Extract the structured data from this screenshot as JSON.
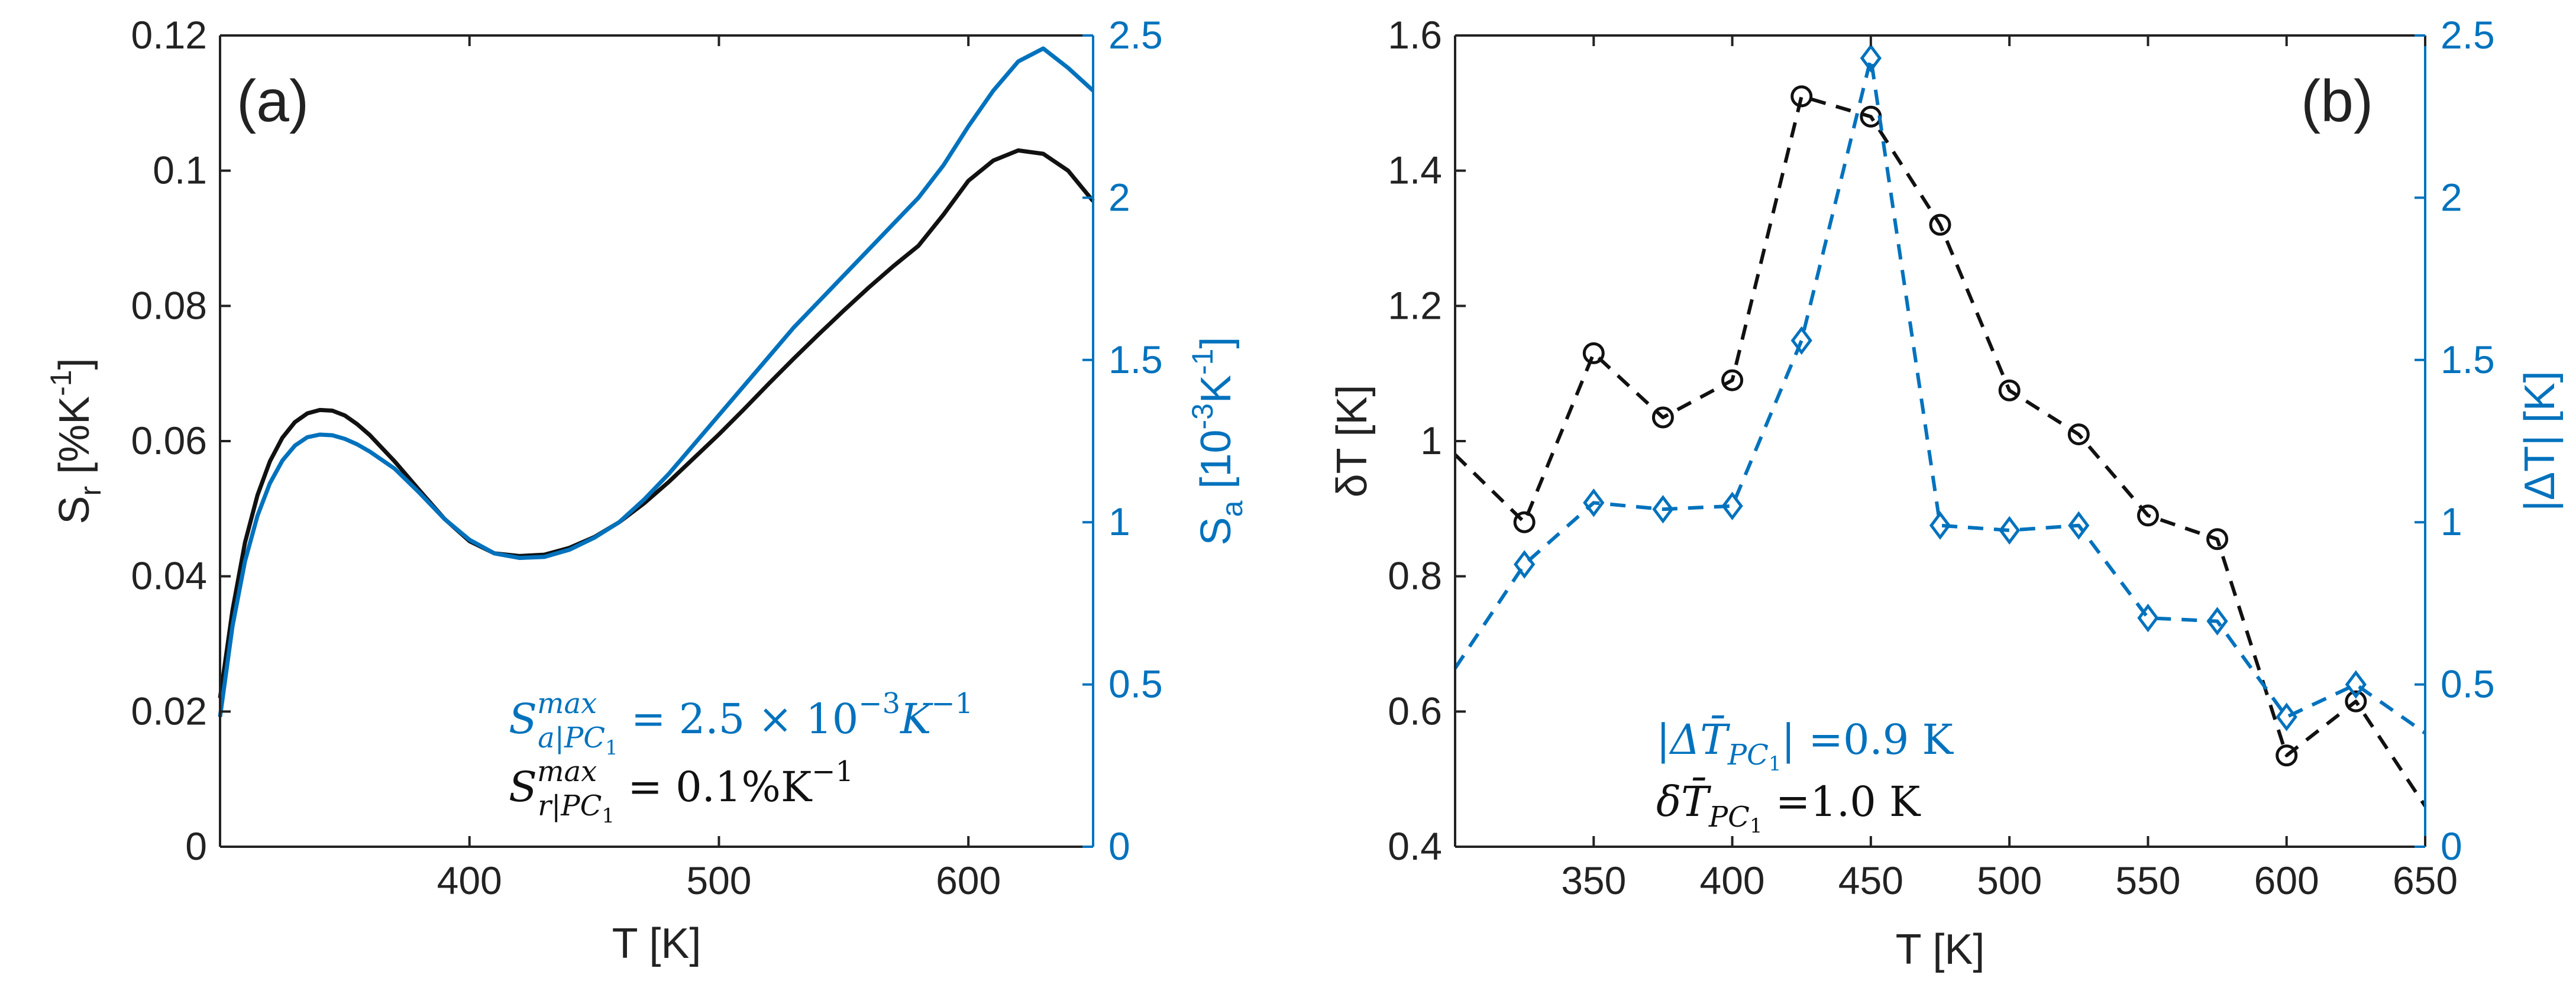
{
  "colors": {
    "black": "#111111",
    "blue": "#0072BD"
  },
  "chart_data": [
    {
      "type": "line",
      "panel_label": "(a)",
      "xlabel": "T [K]",
      "ylabel_left": {
        "base": "S",
        "sub": "r",
        "open": " [%K",
        "sup": "-1",
        "close": "]"
      },
      "ylabel_right": {
        "base": "S",
        "sub": "a",
        "open": " [10",
        "sup": "-3",
        "mid": "K",
        "sup2": "-1",
        "close": "]"
      },
      "xlim": [
        300,
        650
      ],
      "ylim_left": [
        0,
        0.12
      ],
      "ylim_right": [
        0,
        2.5
      ],
      "xticks": [
        400,
        500,
        600
      ],
      "xtick_labels": [
        "400",
        "500",
        "600"
      ],
      "yticks_left": [
        0,
        0.02,
        0.04,
        0.06,
        0.08,
        0.1,
        0.12
      ],
      "ytick_labels_left": [
        "0",
        "0.02",
        "0.04",
        "0.06",
        "0.08",
        "0.1",
        "0.12"
      ],
      "yticks_right": [
        0,
        0.5,
        1,
        1.5,
        2,
        2.5
      ],
      "ytick_labels_right": [
        "0",
        "0.5",
        "1",
        "1.5",
        "2",
        "2.5"
      ],
      "series": [
        {
          "name": "S_r",
          "axis": "left",
          "color": "#111111",
          "x": [
            300,
            305,
            310,
            315,
            320,
            325,
            330,
            335,
            340,
            345,
            350,
            355,
            360,
            370,
            380,
            390,
            400,
            410,
            420,
            430,
            440,
            450,
            460,
            470,
            480,
            490,
            500,
            510,
            520,
            530,
            540,
            550,
            560,
            570,
            580,
            590,
            600,
            610,
            620,
            630,
            640,
            650
          ],
          "y": [
            0.022,
            0.035,
            0.045,
            0.052,
            0.057,
            0.0605,
            0.0628,
            0.0641,
            0.0646,
            0.0645,
            0.0638,
            0.0625,
            0.0609,
            0.057,
            0.0527,
            0.0485,
            0.0452,
            0.0434,
            0.043,
            0.0432,
            0.0442,
            0.0458,
            0.048,
            0.0508,
            0.054,
            0.0575,
            0.061,
            0.0647,
            0.0685,
            0.0722,
            0.0758,
            0.0793,
            0.0827,
            0.0859,
            0.0889,
            0.0935,
            0.0985,
            0.1015,
            0.103,
            0.1025,
            0.1,
            0.0955
          ]
        },
        {
          "name": "S_a",
          "axis": "right",
          "color": "#0072BD",
          "x": [
            300,
            305,
            310,
            315,
            320,
            325,
            330,
            335,
            340,
            345,
            350,
            355,
            360,
            370,
            380,
            390,
            400,
            410,
            420,
            430,
            440,
            450,
            460,
            470,
            480,
            490,
            500,
            510,
            520,
            530,
            540,
            550,
            560,
            570,
            580,
            590,
            600,
            610,
            620,
            630,
            640,
            650
          ],
          "y": [
            0.4,
            0.68,
            0.88,
            1.02,
            1.12,
            1.19,
            1.236,
            1.262,
            1.27,
            1.268,
            1.257,
            1.24,
            1.218,
            1.165,
            1.09,
            1.01,
            0.946,
            0.904,
            0.89,
            0.893,
            0.915,
            0.952,
            1.0,
            1.07,
            1.15,
            1.24,
            1.33,
            1.42,
            1.51,
            1.6,
            1.68,
            1.76,
            1.84,
            1.92,
            2.0,
            2.1,
            2.22,
            2.33,
            2.42,
            2.46,
            2.4,
            2.33
          ]
        }
      ],
      "annotations": [
        {
          "color": "#0072BD",
          "base": "S",
          "sup": "max",
          "sub": "a|PC",
          "subsub": "1",
          "rest": " = 2.5 × 10",
          "sup2": "−3",
          "tail": "K",
          "sup3": "−1"
        },
        {
          "color": "#111111",
          "base": "S",
          "sup": "max",
          "sub": "r|PC",
          "subsub": "1",
          "rest": " = 0.1%K",
          "sup2": "−1"
        }
      ]
    },
    {
      "type": "line",
      "panel_label": "(b)",
      "xlabel": "T [K]",
      "ylabel_left": "δT [K]",
      "ylabel_right": "|ΔT| [K]",
      "xlim": [
        300,
        650
      ],
      "ylim_left": [
        0.4,
        1.6
      ],
      "ylim_right": [
        0,
        2.5
      ],
      "xticks": [
        350,
        400,
        450,
        500,
        550,
        600,
        650
      ],
      "xtick_labels": [
        "350",
        "400",
        "450",
        "500",
        "550",
        "600",
        "650"
      ],
      "yticks_left": [
        0.4,
        0.6,
        0.8,
        1,
        1.2,
        1.4,
        1.6
      ],
      "ytick_labels_left": [
        "0.4",
        "0.6",
        "0.8",
        "1",
        "1.2",
        "1.4",
        "1.6"
      ],
      "yticks_right": [
        0,
        0.5,
        1,
        1.5,
        2,
        2.5
      ],
      "ytick_labels_right": [
        "0",
        "0.5",
        "1",
        "1.5",
        "2",
        "2.5"
      ],
      "series": [
        {
          "name": "δT",
          "axis": "left",
          "color": "#111111",
          "marker": "circle",
          "line": "dashed",
          "x": [
            325,
            350,
            375,
            400,
            425,
            450,
            475,
            500,
            525,
            550,
            575,
            600,
            625
          ],
          "y": [
            0.88,
            1.13,
            1.035,
            1.09,
            1.51,
            1.48,
            1.32,
            1.075,
            1.01,
            0.89,
            0.855,
            0.535,
            0.615
          ],
          "line_x": [
            300,
            325,
            350,
            375,
            400,
            425,
            450,
            475,
            500,
            525,
            550,
            575,
            600,
            625,
            650
          ],
          "line_y": [
            0.98,
            0.88,
            1.13,
            1.035,
            1.09,
            1.51,
            1.48,
            1.32,
            1.075,
            1.01,
            0.89,
            0.855,
            0.535,
            0.615,
            0.46
          ]
        },
        {
          "name": "|ΔT|",
          "axis": "right",
          "color": "#0072BD",
          "marker": "diamond",
          "line": "dashed",
          "x": [
            325,
            350,
            375,
            400,
            425,
            450,
            475,
            500,
            525,
            550,
            575,
            600,
            625
          ],
          "y": [
            0.87,
            1.06,
            1.04,
            1.05,
            1.56,
            2.43,
            0.99,
            0.975,
            0.99,
            0.705,
            0.695,
            0.4,
            0.5
          ],
          "line_x": [
            300,
            325,
            350,
            375,
            400,
            425,
            450,
            475,
            500,
            525,
            550,
            575,
            600,
            625,
            650
          ],
          "line_y": [
            0.55,
            0.87,
            1.06,
            1.04,
            1.05,
            1.56,
            2.43,
            0.99,
            0.975,
            0.99,
            0.705,
            0.695,
            0.4,
            0.5,
            0.35
          ]
        }
      ],
      "annotations": [
        {
          "color": "#0072BD",
          "pre": "|ΔT̄",
          "sub": "PC",
          "subsub": "1",
          "post": "| =0.9 K"
        },
        {
          "color": "#111111",
          "pre": "δT̄",
          "sub": "PC",
          "subsub": "1",
          "post": " =1.0 K"
        }
      ]
    }
  ]
}
